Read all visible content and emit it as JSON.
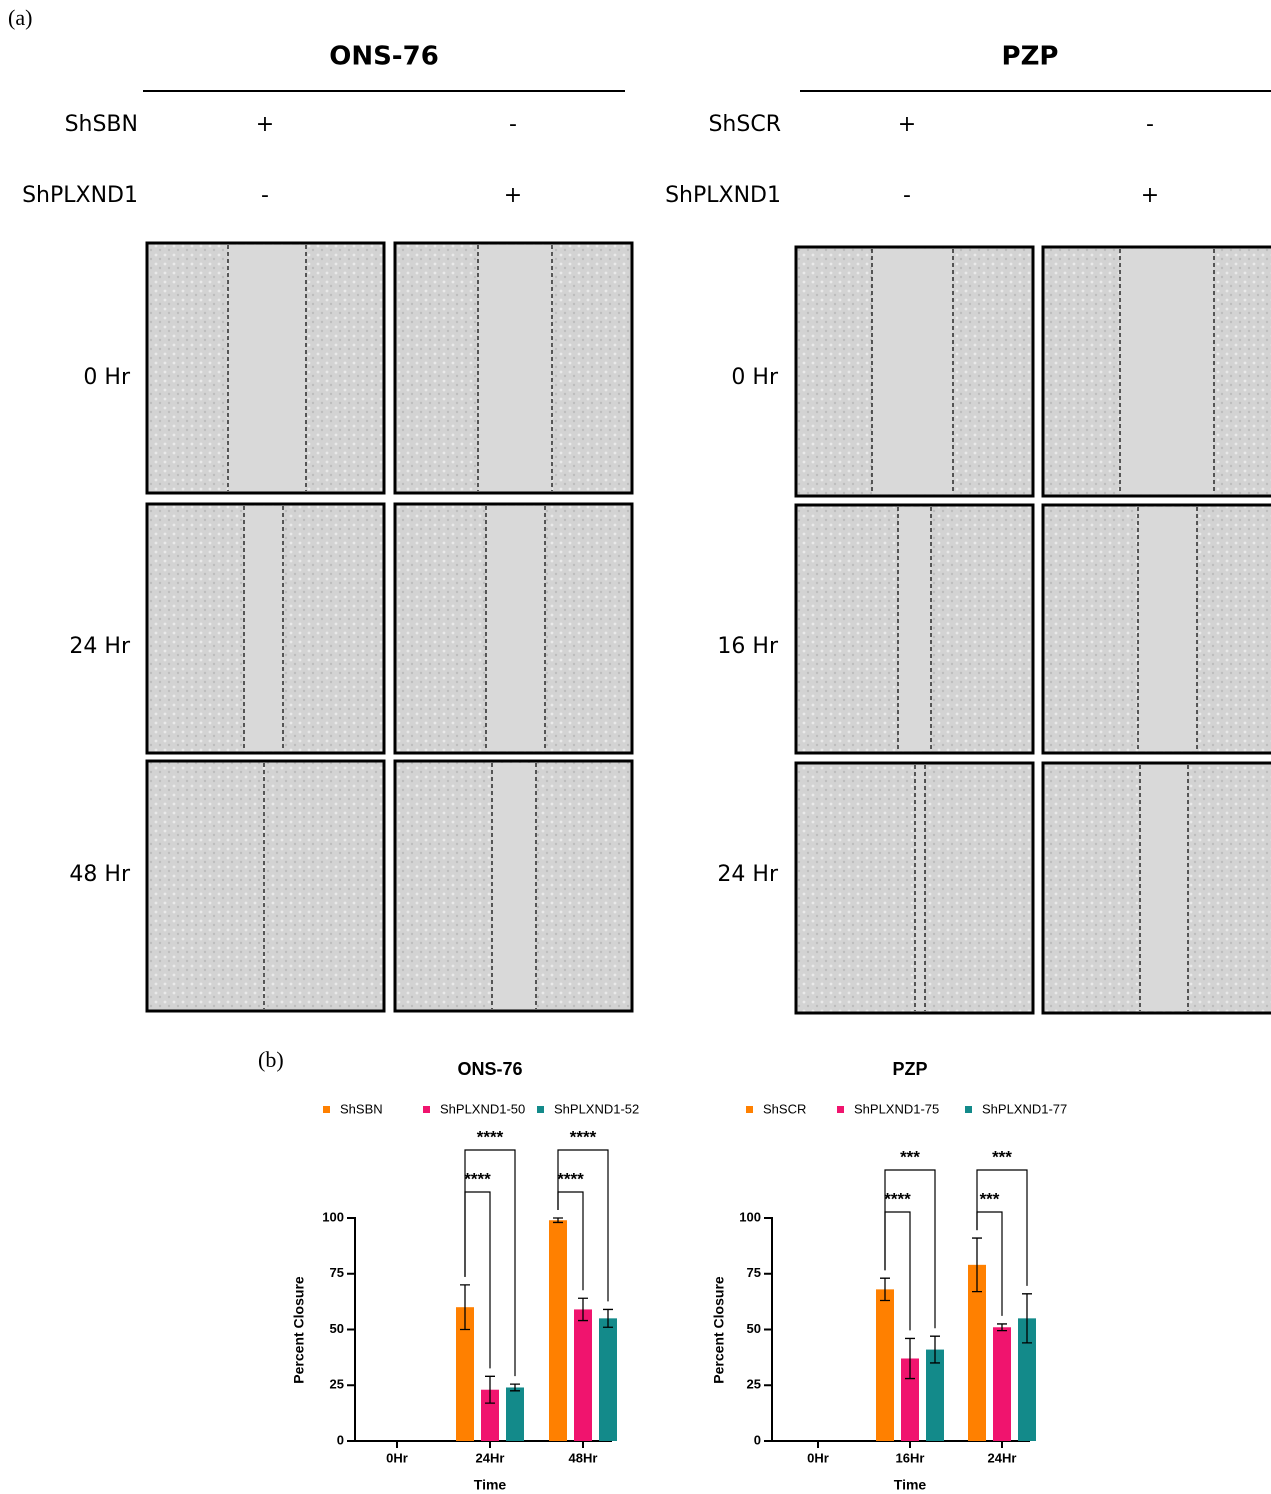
{
  "panel_a": {
    "label": "(a)",
    "groups": [
      {
        "title": "ONS-76",
        "row1_name": "ShSBN",
        "row1": [
          "+",
          "-"
        ],
        "row2_name": "ShPLXND1",
        "row2": [
          "-",
          "+"
        ],
        "times": [
          "0 Hr",
          "24 Hr",
          "48 Hr"
        ]
      },
      {
        "title": "PZP",
        "row1_name": "ShSCR",
        "row1": [
          "+",
          "-"
        ],
        "row2_name": "ShPLXND1",
        "row2": [
          "-",
          "+"
        ],
        "times": [
          "0 Hr",
          "16 Hr",
          "24 Hr"
        ]
      }
    ]
  },
  "panel_b": {
    "label": "(b)"
  },
  "chart_data": [
    {
      "type": "bar",
      "title": "ONS-76",
      "x_label": "Time",
      "y_label": "Percent Closure",
      "categories": [
        "0Hr",
        "24Hr",
        "48Hr"
      ],
      "series": [
        {
          "name": "ShSBN",
          "color": "#ff8000",
          "values": [
            0,
            60,
            99
          ],
          "errors": [
            0,
            10,
            1
          ]
        },
        {
          "name": "ShPLXND1-50",
          "color": "#f0146e",
          "values": [
            0,
            23,
            59
          ],
          "errors": [
            0,
            6,
            5
          ]
        },
        {
          "name": "ShPLXND1-52",
          "color": "#138a8a",
          "values": [
            0,
            24,
            55
          ],
          "errors": [
            0,
            1.5,
            4
          ]
        }
      ],
      "ylim": [
        0,
        100
      ],
      "yticks": [
        0,
        25,
        50,
        75,
        100
      ],
      "annotations": [
        "****",
        "****",
        "****",
        "****"
      ]
    },
    {
      "type": "bar",
      "title": "PZP",
      "x_label": "Time",
      "y_label": "Percent Closure",
      "categories": [
        "0Hr",
        "16Hr",
        "24Hr"
      ],
      "series": [
        {
          "name": "ShSCR",
          "color": "#ff8000",
          "values": [
            0,
            68,
            79
          ],
          "errors": [
            0,
            5,
            12
          ]
        },
        {
          "name": "ShPLXND1-75",
          "color": "#f0146e",
          "values": [
            0,
            37,
            51
          ],
          "errors": [
            0,
            9,
            1.5
          ]
        },
        {
          "name": "ShPLXND1-77",
          "color": "#138a8a",
          "values": [
            0,
            41,
            55
          ],
          "errors": [
            0,
            6,
            11
          ]
        }
      ],
      "ylim": [
        0,
        100
      ],
      "yticks": [
        0,
        25,
        50,
        75,
        100
      ],
      "annotations": [
        "***",
        "****",
        "***",
        "***"
      ]
    }
  ]
}
